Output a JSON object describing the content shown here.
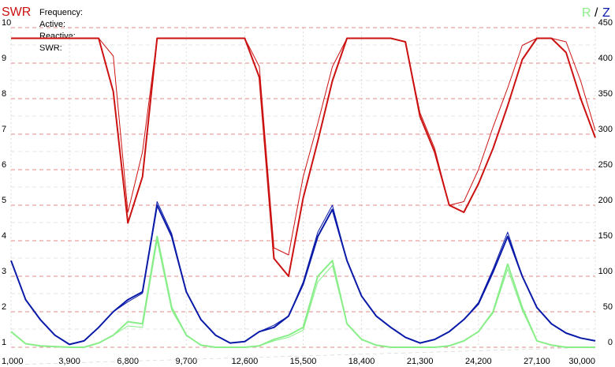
{
  "chart_data": {
    "type": "line",
    "title": "SWR",
    "annotations": [
      "Frequency:",
      "Active:",
      "Reactive:",
      "SWR:"
    ],
    "y2label": [
      "R",
      "/",
      "Z"
    ],
    "x": [
      1000,
      1725,
      2450,
      3175,
      3900,
      4625,
      5350,
      6075,
      6800,
      7525,
      8250,
      8975,
      9700,
      10425,
      11150,
      11875,
      12600,
      13325,
      14050,
      14775,
      15500,
      16225,
      16950,
      17675,
      18400,
      19125,
      19850,
      20575,
      21300,
      22025,
      22750,
      23475,
      24200,
      24925,
      25650,
      26375,
      27100,
      27825,
      28550,
      29275,
      30000
    ],
    "xlim": [
      1000,
      30000
    ],
    "xticks": [
      {
        "value": 1000,
        "label": "1,000"
      },
      {
        "value": 3900,
        "label": "3,900"
      },
      {
        "value": 6800,
        "label": "6,800"
      },
      {
        "value": 9700,
        "label": "9,700"
      },
      {
        "value": 12600,
        "label": "12,600"
      },
      {
        "value": 15500,
        "label": "15,500"
      },
      {
        "value": 18400,
        "label": "18,400"
      },
      {
        "value": 21300,
        "label": "21,300"
      },
      {
        "value": 24200,
        "label": "24,200"
      },
      {
        "value": 27100,
        "label": "27,100"
      },
      {
        "value": 30000,
        "label": "30,000"
      }
    ],
    "ylim": [
      1,
      10
    ],
    "yticks": [
      1,
      2,
      3,
      4,
      5,
      6,
      7,
      8,
      9,
      10
    ],
    "y2lim": [
      0,
      450
    ],
    "y2ticks": [
      0,
      50,
      100,
      150,
      200,
      250,
      300,
      350,
      400,
      450
    ],
    "grid": true,
    "series": [
      {
        "color": "#cc1111",
        "linewidth": 1,
        "values": [
          9.7,
          9.7,
          9.7,
          9.7,
          9.7,
          9.7,
          9.7,
          9.2,
          4.8,
          6.5,
          9.7,
          9.7,
          9.7,
          9.7,
          9.7,
          9.7,
          9.7,
          8.9,
          3.8,
          3.6,
          5.8,
          7.3,
          8.9,
          9.7,
          9.7,
          9.7,
          9.7,
          9.6,
          7.6,
          6.6,
          5.0,
          5.1,
          6.0,
          7.2,
          8.3,
          9.5,
          9.7,
          9.7,
          9.6,
          8.5,
          7.1
        ]
      },
      {
        "color": "#cc1111",
        "linewidth": 2,
        "values": [
          9.7,
          9.7,
          9.7,
          9.7,
          9.7,
          9.7,
          9.7,
          8.2,
          4.5,
          5.8,
          9.7,
          9.7,
          9.7,
          9.7,
          9.7,
          9.7,
          9.7,
          8.6,
          3.5,
          3.0,
          5.2,
          6.8,
          8.5,
          9.7,
          9.7,
          9.7,
          9.7,
          9.6,
          7.5,
          6.5,
          5.0,
          4.8,
          5.6,
          6.6,
          7.8,
          9.1,
          9.7,
          9.7,
          9.3,
          8.0,
          6.9
        ]
      },
      {
        "color": "#0a1aa8",
        "linewidth": 1,
        "axis": "y2",
        "values": [
          122,
          67,
          39,
          17,
          4,
          9,
          28,
          50,
          64,
          76,
          205,
          160,
          78,
          39,
          17,
          6,
          8,
          22,
          31,
          44,
          92,
          162,
          200,
          122,
          72,
          44,
          28,
          14,
          6,
          11,
          22,
          39,
          63,
          110,
          162,
          100,
          56,
          33,
          20,
          13,
          9
        ]
      },
      {
        "color": "#0a1aa8",
        "linewidth": 2,
        "axis": "y2",
        "values": [
          122,
          67,
          39,
          17,
          4,
          9,
          28,
          50,
          67,
          78,
          200,
          156,
          78,
          39,
          17,
          6,
          8,
          22,
          28,
          44,
          89,
          156,
          194,
          122,
          72,
          44,
          28,
          14,
          6,
          11,
          22,
          39,
          61,
          106,
          156,
          100,
          56,
          33,
          20,
          13,
          9
        ]
      },
      {
        "color": "#88ee88",
        "linewidth": 1,
        "axis": "y2",
        "values": [
          22,
          5,
          2,
          1,
          0,
          0,
          6,
          17,
          30,
          28,
          150,
          52,
          17,
          3,
          0,
          0,
          0,
          2,
          9,
          14,
          24,
          92,
          115,
          33,
          11,
          3,
          0,
          0,
          0,
          0,
          2,
          9,
          22,
          48,
          110,
          52,
          9,
          3,
          0,
          0,
          0
        ]
      },
      {
        "color": "#88ee88",
        "linewidth": 2,
        "axis": "y2",
        "values": [
          22,
          5,
          2,
          1,
          0,
          0,
          6,
          17,
          36,
          33,
          156,
          56,
          17,
          3,
          0,
          0,
          0,
          2,
          11,
          17,
          28,
          100,
          122,
          33,
          11,
          3,
          0,
          0,
          0,
          0,
          2,
          9,
          22,
          50,
          117,
          56,
          9,
          3,
          0,
          0,
          0
        ]
      }
    ]
  }
}
